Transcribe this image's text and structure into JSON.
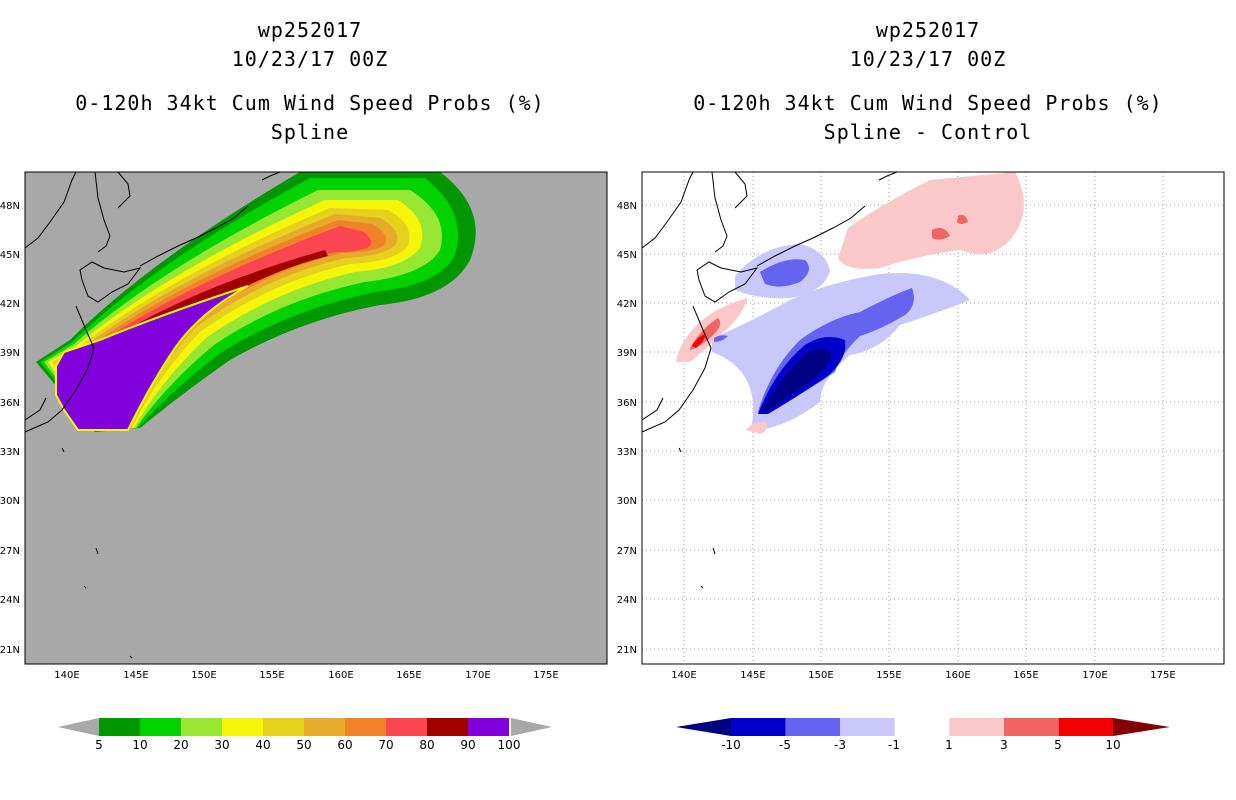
{
  "chart_data": [
    {
      "type": "heatmap",
      "storm_id": "wp252017",
      "date": "10/23/17 00Z",
      "title": "0-120h 34kt Cum Wind Speed Probs (%)",
      "subtitle": "Spline",
      "x_ticks": [
        "140E",
        "145E",
        "150E",
        "155E",
        "160E",
        "165E",
        "170E",
        "175E"
      ],
      "y_ticks": [
        "48N",
        "45N",
        "42N",
        "39N",
        "36N",
        "33N",
        "30N",
        "27N",
        "24N",
        "21N"
      ],
      "xlim": [
        137.5,
        180.0
      ],
      "ylim": [
        20.0,
        50.0
      ],
      "background_color": "#a8a8a8",
      "colorbar": {
        "labels": [
          "5",
          "10",
          "20",
          "30",
          "40",
          "50",
          "60",
          "70",
          "80",
          "90",
          "100"
        ],
        "colors": [
          "#009600",
          "#00d200",
          "#96e632",
          "#f5f50a",
          "#e6d21e",
          "#e6aa2d",
          "#f08228",
          "#fa4650",
          "#a00000",
          "#8200dc"
        ],
        "low_arrow": "#a8a8a8",
        "high_arrow": "#a8a8a8"
      }
    },
    {
      "type": "heatmap",
      "storm_id": "wp252017",
      "date": "10/23/17 00Z",
      "title": "0-120h 34kt Cum Wind Speed Probs (%)",
      "subtitle": "Spline - Control",
      "x_ticks": [
        "140E",
        "145E",
        "150E",
        "155E",
        "160E",
        "165E",
        "170E",
        "175E"
      ],
      "y_ticks": [
        "48N",
        "45N",
        "42N",
        "39N",
        "36N",
        "33N",
        "30N",
        "27N",
        "24N",
        "21N"
      ],
      "xlim": [
        137.5,
        180.0
      ],
      "ylim": [
        20.0,
        50.0
      ],
      "background_color": "#ffffff",
      "colorbar": {
        "labels": [
          "-10",
          "-5",
          "-3",
          "-1",
          "1",
          "3",
          "5",
          "10"
        ],
        "colors": [
          "#0000c8",
          "#6464f0",
          "#c8c8fa",
          "#ffffff",
          "#fac8c8",
          "#f06464",
          "#f00000"
        ],
        "low_arrow": "#000082",
        "high_arrow": "#820000"
      }
    }
  ]
}
